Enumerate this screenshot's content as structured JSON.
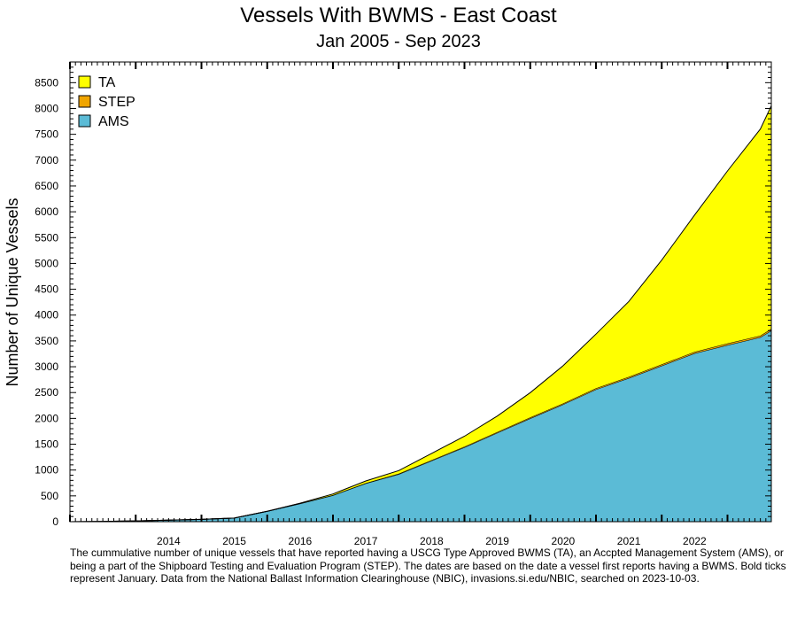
{
  "chart_data": {
    "type": "area",
    "stacked": true,
    "title": "Vessels With BWMS -  East Coast",
    "subtitle": "Jan 2005 -  Sep 2023",
    "xlabel": "",
    "ylabel": "Number of Unique Vessels",
    "ylim": [
      0,
      8900
    ],
    "y_ticks": [
      0,
      500,
      1000,
      1500,
      2000,
      2500,
      3000,
      3500,
      4000,
      4500,
      5000,
      5500,
      6000,
      6500,
      7000,
      7500,
      8000,
      8500
    ],
    "x_tick_labels": [
      "2014",
      "2015",
      "2016",
      "2017",
      "2018",
      "2019",
      "2020",
      "2021",
      "2022"
    ],
    "xlim": [
      "2013-01",
      "2023-09"
    ],
    "legend_position": "top-left",
    "grid": false,
    "x": [
      "2013-01",
      "2013-07",
      "2014-01",
      "2014-07",
      "2015-01",
      "2015-07",
      "2016-01",
      "2016-07",
      "2017-01",
      "2017-07",
      "2018-01",
      "2018-07",
      "2019-01",
      "2019-07",
      "2020-01",
      "2020-07",
      "2021-01",
      "2021-07",
      "2022-01",
      "2022-07",
      "2023-01",
      "2023-07",
      "2023-09"
    ],
    "series": [
      {
        "name": "AMS",
        "color": "#5bbbd6",
        "values": [
          0,
          5,
          15,
          30,
          45,
          70,
          200,
          350,
          510,
          740,
          920,
          1180,
          1440,
          1720,
          2000,
          2270,
          2560,
          2780,
          3020,
          3260,
          3420,
          3570,
          3700
        ]
      },
      {
        "name": "STEP",
        "color": "#f0a500",
        "values": [
          0,
          0,
          0,
          0,
          0,
          0,
          2,
          4,
          6,
          8,
          10,
          12,
          14,
          16,
          18,
          20,
          22,
          24,
          26,
          28,
          30,
          32,
          33
        ]
      },
      {
        "name": "TA",
        "color": "#ffff00",
        "values": [
          0,
          0,
          0,
          0,
          0,
          0,
          0,
          5,
          20,
          40,
          60,
          130,
          200,
          310,
          480,
          730,
          1050,
          1460,
          2020,
          2650,
          3340,
          4000,
          4320
        ]
      }
    ]
  },
  "caption": "The cummulative number of unique vessels that have reported having a USCG Type Approved BWMS (TA), an Accpted Management System (AMS), or being a part of the Shipboard Testing and Evaluation Program (STEP). The dates are based on the date a vessel first reports having a BWMS. Bold ticks represent January. Data from the National Ballast Information Clearinghouse (NBIC), invasions.si.edu/NBIC, searched on 2023-10-03."
}
